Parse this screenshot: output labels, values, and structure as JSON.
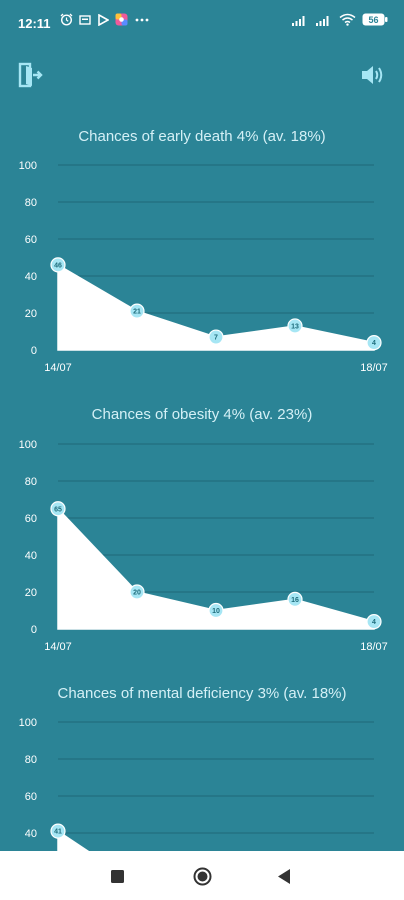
{
  "status_bar": {
    "time": "12:11",
    "battery": "56",
    "icons": [
      "alarm-icon",
      "message-icon",
      "play-store-icon",
      "app-icon",
      "more-icon",
      "signal-icon",
      "signal-icon",
      "wifi-icon",
      "battery-icon"
    ]
  },
  "toolbar": {
    "exit_icon": "exit-door-icon",
    "sound_icon": "speaker-icon"
  },
  "colors": {
    "background": "#2b8496",
    "area_fill": "#ffffff",
    "grid": "#1f6878",
    "title": "#d4f0f6",
    "point": "#a6e6f4"
  },
  "chart_data": [
    {
      "type": "area",
      "title": "Chances of early death 4% (av. 18%)",
      "ylim": [
        0,
        100
      ],
      "y_ticks": [
        "0",
        "20",
        "40",
        "60",
        "80",
        "100"
      ],
      "x_labels": [
        "14/07",
        "18/07"
      ],
      "values": [
        46,
        21,
        7,
        13,
        4
      ],
      "grid": true
    },
    {
      "type": "area",
      "title": "Chances of obesity 4% (av. 23%)",
      "ylim": [
        0,
        100
      ],
      "y_ticks": [
        "0",
        "20",
        "40",
        "60",
        "80",
        "100"
      ],
      "x_labels": [
        "14/07",
        "18/07"
      ],
      "values": [
        65,
        20,
        10,
        16,
        4
      ],
      "grid": true
    },
    {
      "type": "area",
      "title": "Chances of mental deficiency 3% (av. 18%)",
      "ylim": [
        0,
        100
      ],
      "y_ticks": [
        "40",
        "60",
        "80",
        "100"
      ],
      "x_labels": [],
      "values": [
        41
      ],
      "grid": true
    }
  ],
  "nav": {
    "recents_icon": "square-recents-icon",
    "home_icon": "circle-home-icon",
    "back_icon": "triangle-back-icon"
  }
}
